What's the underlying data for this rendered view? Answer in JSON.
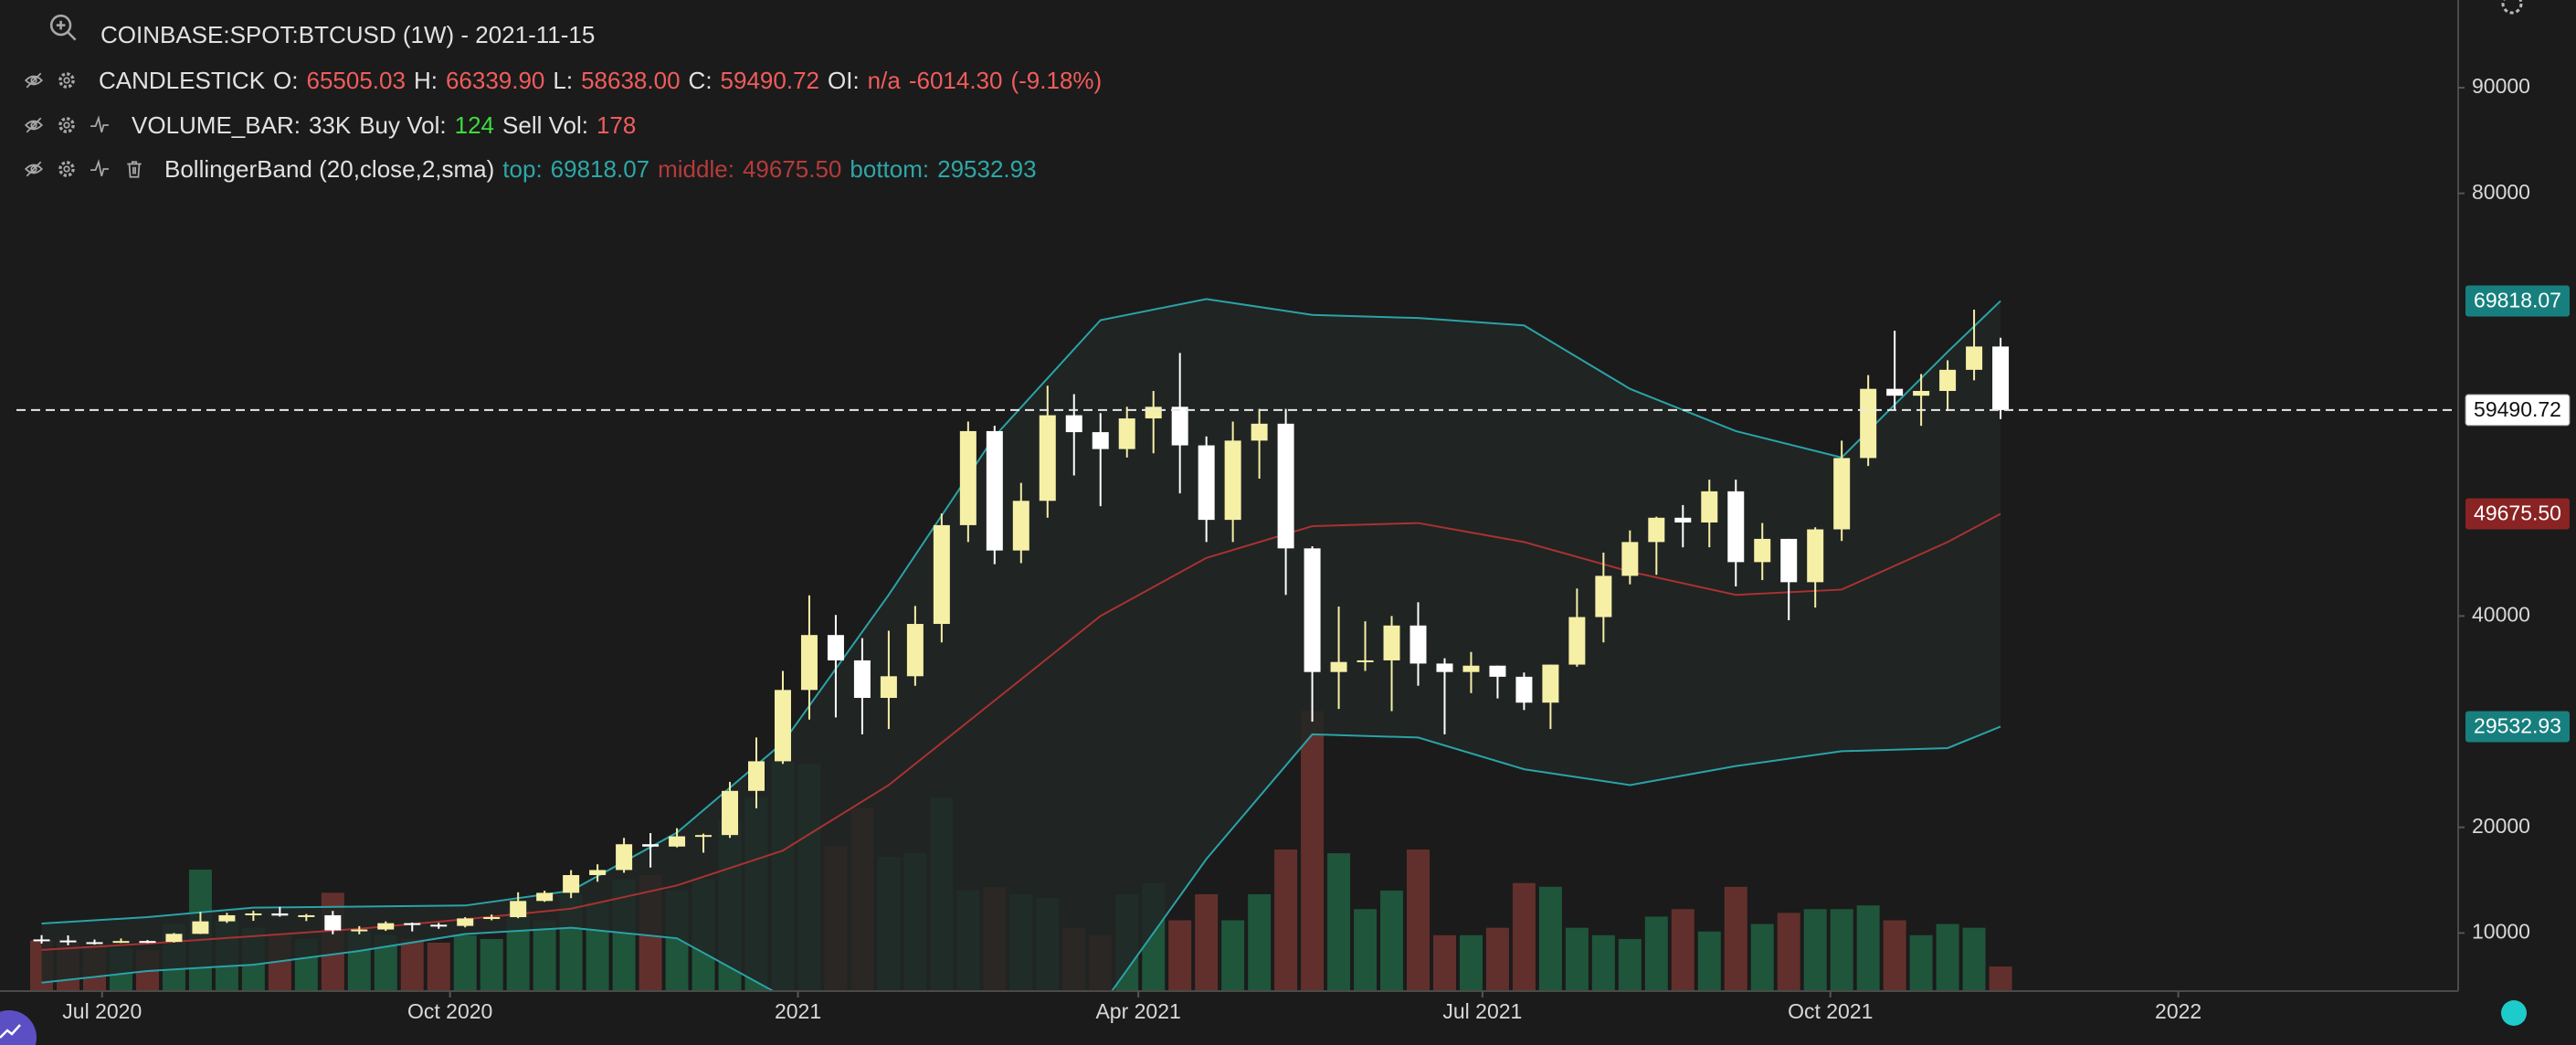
{
  "chart_data": {
    "type": "candlestick",
    "title": "COINBASE:SPOT:BTCUSD (1W) - 2021-11-15",
    "candle_legend": {
      "name": "CANDLESTICK",
      "items": [
        {
          "key": "O:",
          "value": "65505.03"
        },
        {
          "key": "H:",
          "value": "66339.90"
        },
        {
          "key": "L:",
          "value": "58638.00"
        },
        {
          "key": "C:",
          "value": "59490.72"
        },
        {
          "key": "OI:",
          "value": "n/a"
        }
      ],
      "change": "-6014.30",
      "change_pct": "(-9.18%)"
    },
    "volume_legend": {
      "name": "VOLUME_BAR:",
      "value": "33K",
      "items": [
        {
          "key": "Buy Vol:",
          "value": "124"
        },
        {
          "key": "Sell Vol:",
          "value": "178"
        }
      ]
    },
    "bands_name": "BollingerBand (20,close,2,sma)",
    "x": [
      "2020-06-15",
      "2020-06-22",
      "2020-06-29",
      "2020-07-06",
      "2020-07-13",
      "2020-07-20",
      "2020-07-27",
      "2020-08-03",
      "2020-08-10",
      "2020-08-17",
      "2020-08-24",
      "2020-08-31",
      "2020-09-07",
      "2020-09-14",
      "2020-09-21",
      "2020-09-28",
      "2020-10-05",
      "2020-10-12",
      "2020-10-19",
      "2020-10-26",
      "2020-11-02",
      "2020-11-09",
      "2020-11-16",
      "2020-11-23",
      "2020-11-30",
      "2020-12-07",
      "2020-12-14",
      "2020-12-21",
      "2020-12-28",
      "2021-01-04",
      "2021-01-11",
      "2021-01-18",
      "2021-01-25",
      "2021-02-01",
      "2021-02-08",
      "2021-02-15",
      "2021-02-22",
      "2021-03-01",
      "2021-03-08",
      "2021-03-15",
      "2021-03-22",
      "2021-03-29",
      "2021-04-05",
      "2021-04-12",
      "2021-04-19",
      "2021-04-26",
      "2021-05-03",
      "2021-05-10",
      "2021-05-17",
      "2021-05-24",
      "2021-05-31",
      "2021-06-07",
      "2021-06-14",
      "2021-06-21",
      "2021-06-28",
      "2021-07-05",
      "2021-07-12",
      "2021-07-19",
      "2021-07-26",
      "2021-08-02",
      "2021-08-09",
      "2021-08-16",
      "2021-08-23",
      "2021-08-30",
      "2021-09-06",
      "2021-09-13",
      "2021-09-20",
      "2021-09-27",
      "2021-10-04",
      "2021-10-11",
      "2021-10-18",
      "2021-10-25",
      "2021-11-01",
      "2021-11-08",
      "2021-11-15"
    ],
    "open": [
      9390,
      9290,
      9130,
      9070,
      9240,
      9160,
      9920,
      11100,
      11680,
      11850,
      11650,
      11680,
      10250,
      10330,
      10930,
      10780,
      10670,
      11380,
      11500,
      13030,
      13800,
      15480,
      15960,
      18400,
      18180,
      19150,
      19270,
      23450,
      26250,
      33000,
      38200,
      35800,
      32250,
      34300,
      39250,
      48600,
      57500,
      46200,
      50900,
      59000,
      57400,
      55800,
      58700,
      59800,
      56150,
      49100,
      56600,
      58200,
      46400,
      34700,
      35650,
      35800,
      39100,
      35500,
      34700,
      35300,
      34250,
      31800,
      35400,
      39900,
      43800,
      47000,
      49300,
      48850,
      51800,
      45100,
      47300,
      43200,
      48200,
      54950,
      61500,
      60850,
      61300,
      63300,
      65505.03
    ],
    "high": [
      9800,
      9770,
      9380,
      9480,
      9330,
      10000,
      12000,
      11900,
      12100,
      12470,
      11800,
      12090,
      10650,
      11100,
      10990,
      10950,
      11500,
      11750,
      13850,
      14000,
      15950,
      16500,
      19000,
      19450,
      19920,
      19400,
      24300,
      28500,
      34800,
      41950,
      40100,
      37900,
      38600,
      40950,
      49700,
      58400,
      58000,
      52600,
      61800,
      61000,
      59200,
      59800,
      61300,
      64900,
      57000,
      58400,
      59600,
      59600,
      46600,
      40900,
      39500,
      40000,
      41300,
      36000,
      36600,
      35300,
      34650,
      35400,
      42600,
      46000,
      48100,
      49400,
      50500,
      52900,
      52900,
      48800,
      47300,
      48400,
      56600,
      62800,
      67000,
      62900,
      64200,
      68990,
      66339.9
    ],
    "low": [
      9000,
      8840,
      8900,
      9050,
      9050,
      9100,
      9900,
      10950,
      11150,
      11550,
      11130,
      9880,
      9880,
      10200,
      10150,
      10400,
      10530,
      11200,
      11400,
      12950,
      13300,
      14850,
      15700,
      16200,
      18100,
      17600,
      19000,
      21800,
      26000,
      30200,
      30400,
      28800,
      29300,
      33400,
      37500,
      47000,
      44900,
      45000,
      49300,
      53300,
      50400,
      55000,
      55400,
      51600,
      47000,
      47000,
      53000,
      42000,
      30000,
      31200,
      34800,
      31000,
      33400,
      28800,
      32700,
      32200,
      31100,
      29300,
      35200,
      37500,
      43000,
      43900,
      46500,
      46500,
      42800,
      43400,
      39600,
      40800,
      47100,
      54200,
      59500,
      58000,
      59400,
      62300,
      58638.0
    ],
    "close": [
      9290,
      9130,
      9070,
      9240,
      9160,
      9920,
      11100,
      11680,
      11850,
      11650,
      11680,
      10250,
      10330,
      10930,
      10780,
      10670,
      11380,
      11500,
      13030,
      13800,
      15480,
      15960,
      18400,
      18180,
      19150,
      19270,
      23450,
      26250,
      33000,
      38200,
      35800,
      32250,
      34300,
      39250,
      48600,
      57500,
      46200,
      50900,
      59000,
      57400,
      55800,
      58700,
      59800,
      56150,
      49100,
      56600,
      58200,
      46400,
      34700,
      35650,
      35800,
      39100,
      35500,
      34700,
      35300,
      34250,
      31800,
      35400,
      39900,
      43800,
      47000,
      49300,
      48850,
      51800,
      45100,
      47300,
      43200,
      48200,
      54950,
      61500,
      60850,
      61300,
      63300,
      65505.03,
      59490.72
    ],
    "volume": [
      68000,
      66000,
      60000,
      58000,
      55000,
      90000,
      163000,
      95000,
      85000,
      75000,
      70000,
      132000,
      80000,
      75000,
      70000,
      65000,
      75000,
      70000,
      110000,
      95000,
      130000,
      120000,
      150000,
      156000,
      135000,
      150000,
      230000,
      260000,
      308000,
      305000,
      194000,
      246000,
      180000,
      185000,
      260000,
      135000,
      140000,
      130000,
      125000,
      85000,
      75000,
      130000,
      145000,
      95000,
      130000,
      95000,
      130000,
      190000,
      376000,
      185000,
      110000,
      135000,
      190000,
      75000,
      75000,
      85000,
      145000,
      140000,
      85000,
      75000,
      70000,
      100000,
      110000,
      80000,
      140000,
      90000,
      105000,
      110000,
      110000,
      115000,
      95000,
      75000,
      90000,
      85000,
      33000
    ],
    "up_color": "#f6efa6",
    "down_color": "#ffffff",
    "volume_up_color": "#1f553a",
    "volume_down_color": "#62302c",
    "bands": [
      {
        "label": "top:",
        "last_label": "69818.07",
        "color": "#2aa3a8",
        "x": [
          "2020-06-15",
          "2020-07-13",
          "2020-08-10",
          "2020-09-07",
          "2020-10-05",
          "2020-11-02",
          "2020-11-30",
          "2020-12-28",
          "2021-01-25",
          "2021-02-22",
          "2021-03-22",
          "2021-04-19",
          "2021-05-17",
          "2021-06-14",
          "2021-07-12",
          "2021-08-09",
          "2021-09-06",
          "2021-10-04",
          "2021-11-01",
          "2021-11-15"
        ],
        "values": [
          10900,
          11500,
          12400,
          12500,
          12600,
          14000,
          19500,
          28000,
          42000,
          57000,
          68000,
          70000,
          68500,
          68200,
          67500,
          61500,
          57500,
          55000,
          65000,
          69818.07
        ]
      },
      {
        "label": "middle:",
        "last_label": "49675.50",
        "color": "#a83232",
        "x": [
          "2020-06-15",
          "2020-07-13",
          "2020-08-10",
          "2020-09-07",
          "2020-10-05",
          "2020-11-02",
          "2020-11-30",
          "2020-12-28",
          "2021-01-25",
          "2021-02-22",
          "2021-03-22",
          "2021-04-19",
          "2021-05-17",
          "2021-06-14",
          "2021-07-12",
          "2021-08-09",
          "2021-09-06",
          "2021-10-04",
          "2021-11-01",
          "2021-11-15"
        ],
        "values": [
          8400,
          9000,
          9700,
          10400,
          11300,
          12300,
          14500,
          17800,
          24000,
          32000,
          40000,
          45500,
          48500,
          48800,
          47000,
          44200,
          42000,
          42500,
          47000,
          49675.5
        ]
      },
      {
        "label": "bottom:",
        "last_label": "29532.93",
        "color": "#2aa3a8",
        "x": [
          "2020-06-15",
          "2020-07-13",
          "2020-08-10",
          "2020-09-07",
          "2020-10-05",
          "2020-11-02",
          "2020-11-30",
          "2020-12-28",
          "2021-01-25",
          "2021-02-22",
          "2021-03-22",
          "2021-04-19",
          "2021-05-17",
          "2021-06-14",
          "2021-07-12",
          "2021-08-09",
          "2021-09-06",
          "2021-10-04",
          "2021-11-01",
          "2021-11-15"
        ],
        "values": [
          5300,
          6400,
          7000,
          8300,
          9900,
          10500,
          9500,
          4000,
          1000,
          -1500,
          3000,
          17000,
          28800,
          28500,
          25500,
          24000,
          25800,
          27200,
          27500,
          29532.93
        ]
      }
    ],
    "band_fill": "#212625",
    "price_line": {
      "value": 59490.72,
      "label": "59490.72"
    },
    "xlim": [
      "2020-06-04",
      "2022-03-16"
    ],
    "xticks": [
      {
        "value": "2020-07-01",
        "label": "Jul 2020"
      },
      {
        "value": "2020-10-01",
        "label": "Oct 2020"
      },
      {
        "value": "2021-01-01",
        "label": "2021"
      },
      {
        "value": "2021-04-01",
        "label": "Apr 2021"
      },
      {
        "value": "2021-07-01",
        "label": "Jul 2021"
      },
      {
        "value": "2021-10-01",
        "label": "Oct 2021"
      },
      {
        "value": "2022-01-01",
        "label": "2022"
      }
    ],
    "ylim": [
      4500,
      98300
    ],
    "yticks": [
      10000,
      20000,
      40000,
      80000,
      90000
    ],
    "vlim": [
      0,
      1330000
    ],
    "grid": false
  }
}
